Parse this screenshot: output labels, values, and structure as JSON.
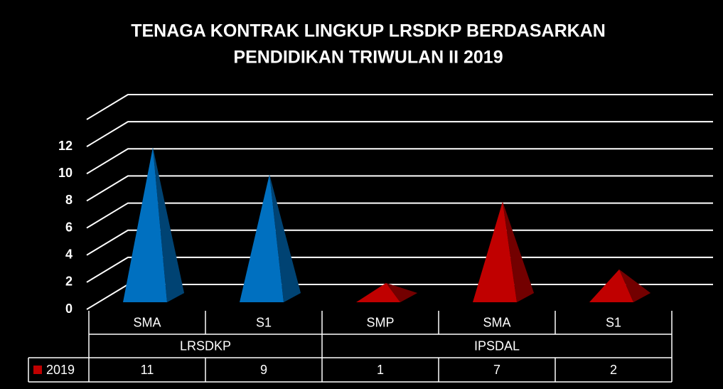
{
  "chart_data": {
    "type": "pyramid",
    "title": [
      "TENAGA KONTRAK LINGKUP LRSDKP BERDASARKAN",
      "PENDIDIKAN TRIWULAN II 2019"
    ],
    "groups": [
      {
        "name": "LRSDKP",
        "categories": [
          "SMA",
          "S1"
        ]
      },
      {
        "name": "IPSDAL",
        "categories": [
          "SMP",
          "SMA",
          "S1"
        ]
      }
    ],
    "series": [
      {
        "name": "2019",
        "color": "#c00000",
        "values": [
          11,
          9,
          1,
          7,
          2
        ],
        "colors": [
          "#0070c0",
          "#0070c0",
          "#c00000",
          "#c00000",
          "#c00000"
        ]
      }
    ],
    "ylim": [
      0,
      14
    ],
    "yticks": [
      0,
      2,
      4,
      6,
      8,
      10,
      12
    ],
    "grid": true
  }
}
